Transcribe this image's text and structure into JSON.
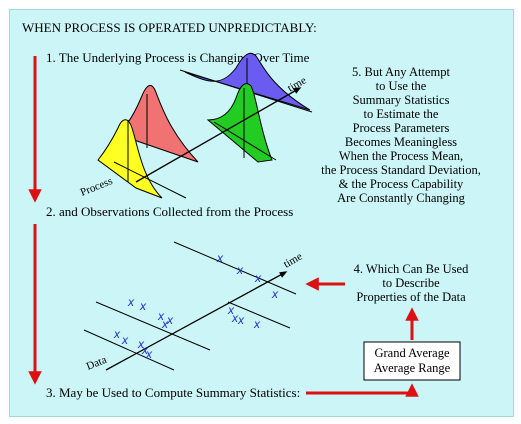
{
  "heading": "WHEN PROCESS IS OPERATED UNPREDICTABLY:",
  "steps": {
    "step1": "1. The Underlying Process is Changing Over Time",
    "step2": "2. and Observations Collected from the Process",
    "step3": "3. May be Used to Compute Summary Statistics:",
    "step4_lines": [
      "4. Which Can Be Used",
      "to Describe",
      "Properties of  the Data"
    ],
    "step5_lines": [
      "5. But Any Attempt",
      "to Use the",
      "Summary Statistics",
      "to Estimate the",
      "Process Parameters",
      "Becomes Meaningless",
      "When the Process Mean,",
      "the Process Standard Deviation,",
      "& the Process Capability",
      "Are Constantly Changing"
    ]
  },
  "upper_diagram": {
    "axis_time_label": "time",
    "axis_process_label": "Process",
    "distribution_colors": [
      "#ffff22",
      "#f07272",
      "#22cc22",
      "#6a5cf0"
    ]
  },
  "lower_diagram": {
    "axis_time_label": "time",
    "axis_data_label": "Data",
    "mark_symbol": "x",
    "mark_color": "#1f2fc8"
  },
  "summary_box": {
    "line1": "Grand Average",
    "line2": "Average Range"
  },
  "colors": {
    "background": "#ccf5f7",
    "arrow": "#dd1111",
    "border": "#9fd8de"
  }
}
